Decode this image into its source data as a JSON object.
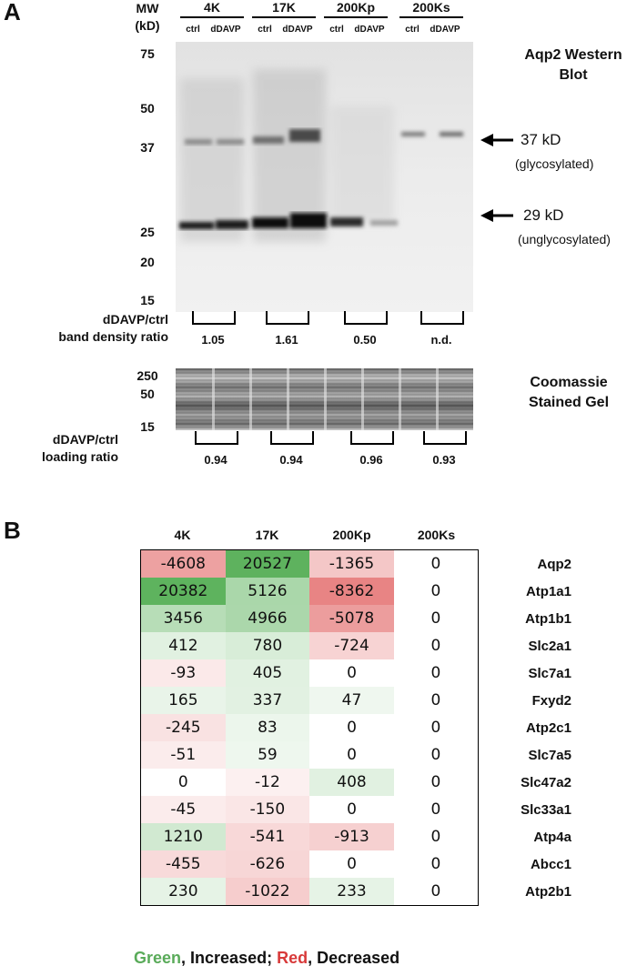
{
  "panel_a": {
    "letter": "A",
    "mw_header": [
      "MW",
      "(kD)"
    ],
    "mw_markers": [
      "75",
      "50",
      "37",
      "25",
      "20",
      "15"
    ],
    "lane_groups": [
      "4K",
      "17K",
      "200Kp",
      "200Ks"
    ],
    "lane_sub": [
      "ctrl",
      "dDAVP"
    ],
    "blot_title": [
      "Aqp2 Western",
      "Blot"
    ],
    "band_37": "37 kD",
    "band_37_sub": "(glycosylated)",
    "band_29": "29 kD",
    "band_29_sub": "(unglycosylated)",
    "density_label": [
      "dDAVP/ctrl",
      "band density ratio"
    ],
    "density_values": [
      "1.05",
      "1.61",
      "0.50",
      "n.d."
    ],
    "gel_markers": [
      "250",
      "50",
      "15"
    ],
    "gel_title": [
      "Coomassie",
      "Stained Gel"
    ],
    "loading_label": [
      "dDAVP/ctrl",
      "loading ratio"
    ],
    "loading_values": [
      "0.94",
      "0.94",
      "0.96",
      "0.93"
    ]
  },
  "panel_b": {
    "letter": "B",
    "columns": [
      "4K",
      "17K",
      "200Kp",
      "200Ks"
    ],
    "rows": [
      {
        "gene": "Aqp2",
        "values": [
          "-4608",
          "20527",
          "-1365",
          "0"
        ]
      },
      {
        "gene": "Atp1a1",
        "values": [
          "20382",
          "5126",
          "-8362",
          "0"
        ]
      },
      {
        "gene": "Atp1b1",
        "values": [
          "3456",
          "4966",
          "-5078",
          "0"
        ]
      },
      {
        "gene": "Slc2a1",
        "values": [
          "412",
          "780",
          "-724",
          "0"
        ]
      },
      {
        "gene": "Slc7a1",
        "values": [
          "-93",
          "405",
          "0",
          "0"
        ]
      },
      {
        "gene": "Fxyd2",
        "values": [
          "165",
          "337",
          "47",
          "0"
        ]
      },
      {
        "gene": "Atp2c1",
        "values": [
          "-245",
          "83",
          "0",
          "0"
        ]
      },
      {
        "gene": "Slc7a5",
        "values": [
          "-51",
          "59",
          "0",
          "0"
        ]
      },
      {
        "gene": "Slc47a2",
        "values": [
          "0",
          "-12",
          "408",
          "0"
        ]
      },
      {
        "gene": "Slc33a1",
        "values": [
          "-45",
          "-150",
          "0",
          "0"
        ]
      },
      {
        "gene": "Atp4a",
        "values": [
          "1210",
          "-541",
          "-913",
          "0"
        ]
      },
      {
        "gene": "Abcc1",
        "values": [
          "-455",
          "-626",
          "0",
          "0"
        ]
      },
      {
        "gene": "Atp2b1",
        "values": [
          "230",
          "-1022",
          "233",
          "0"
        ]
      }
    ],
    "legend_green": "Green",
    "legend_mid": ", Increased; ",
    "legend_red": "Red",
    "legend_end": ", Decreased",
    "colors": {
      "green": "#5aab5a",
      "red": "#d83a3a"
    }
  }
}
